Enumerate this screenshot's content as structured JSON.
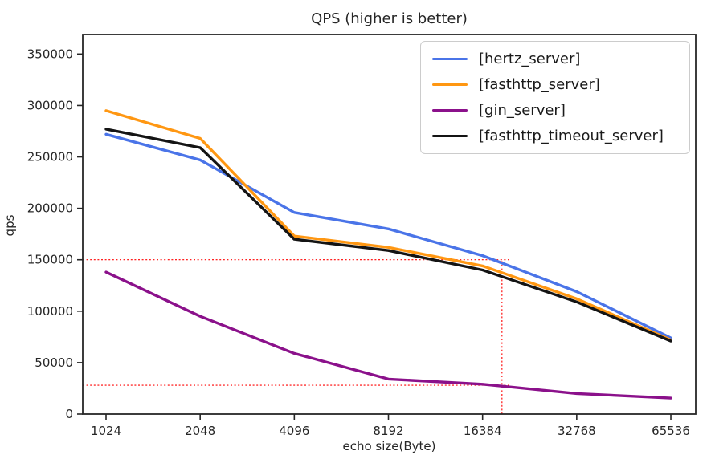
{
  "chart_data": {
    "type": "line",
    "title": "QPS (higher is better)",
    "xlabel": "echo size(Byte)",
    "ylabel": "qps",
    "x_scale": "log2",
    "grid": false,
    "legend_position": "upper right",
    "x": [
      1024,
      2048,
      4096,
      8192,
      16384,
      32768,
      65536
    ],
    "xtick_labels": [
      "1024",
      "2048",
      "4096",
      "8192",
      "16384",
      "32768",
      "65536"
    ],
    "yticks": [
      0,
      50000,
      100000,
      150000,
      200000,
      250000,
      300000,
      350000
    ],
    "ytick_labels": [
      "0",
      "50000",
      "100000",
      "150000",
      "200000",
      "250000",
      "300000",
      "350000"
    ],
    "ylim": [
      0,
      369000
    ],
    "axis_color": "#262626",
    "series": [
      {
        "name": "[hertz_server]",
        "color": "#4A74E8",
        "values": [
          272000,
          247000,
          196000,
          180000,
          154000,
          119000,
          74000
        ]
      },
      {
        "name": "[fasthttp_server]",
        "color": "#FF9712",
        "values": [
          295000,
          268000,
          173000,
          162000,
          144000,
          112000,
          72000
        ]
      },
      {
        "name": "[gin_server]",
        "color": "#8B118B",
        "values": [
          138000,
          95000,
          59000,
          34000,
          29000,
          20000,
          15500
        ]
      },
      {
        "name": "[fasthttp_timeout_server]",
        "color": "#141414",
        "values": [
          277000,
          259000,
          170000,
          159000,
          140000,
          109000,
          71000
        ]
      }
    ],
    "annotations": {
      "color": "#FF0000",
      "style": "dotted",
      "vline": {
        "x": 18900,
        "y_from": 0,
        "y_to": 150000
      },
      "hlines": [
        {
          "y": 150000,
          "from_axis_left": true,
          "x_to": 20000
        },
        {
          "y": 28000,
          "from_axis_left": true,
          "x_to": 20000
        }
      ]
    }
  }
}
